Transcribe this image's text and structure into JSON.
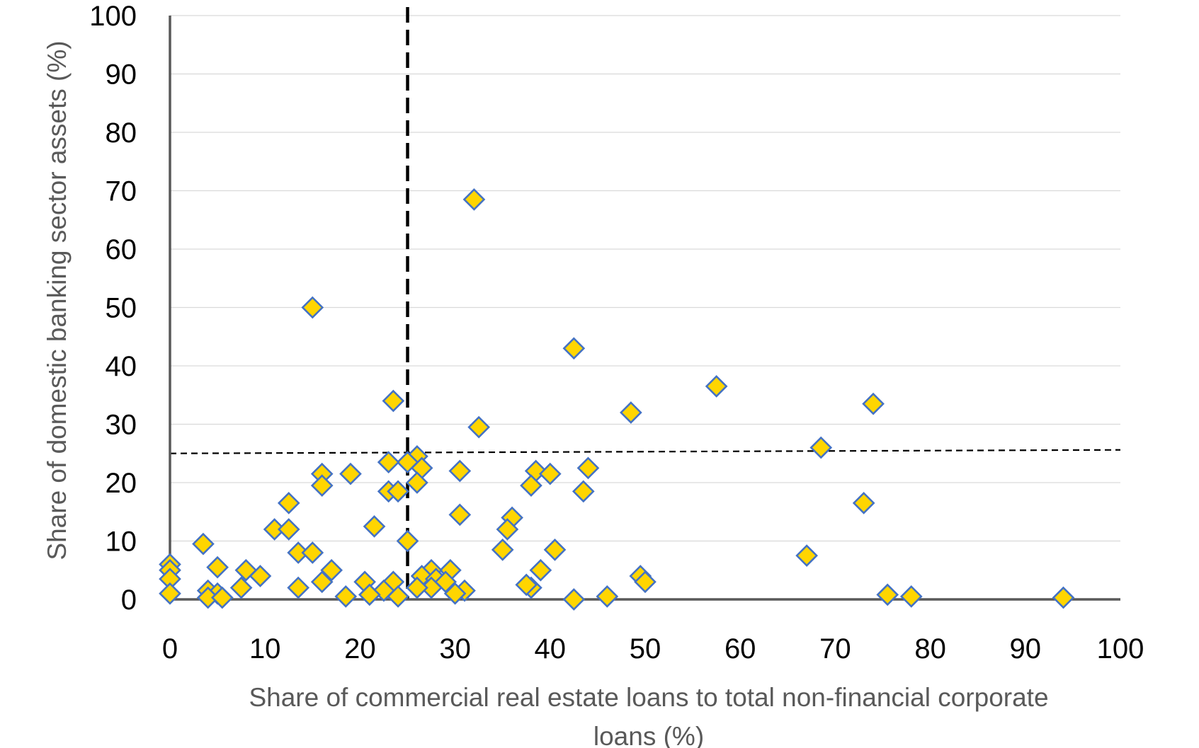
{
  "chart_data": {
    "type": "scatter",
    "xlabel": "Share of commercial real estate loans to total non-financial corporate loans (%)",
    "ylabel": "Share of domestic banking sector assets (%)",
    "xlim": [
      0,
      100
    ],
    "ylim": [
      0,
      100
    ],
    "x_ticks": [
      0,
      10,
      20,
      30,
      40,
      50,
      60,
      70,
      80,
      90,
      100
    ],
    "y_ticks": [
      0,
      10,
      20,
      30,
      40,
      50,
      60,
      70,
      80,
      90,
      100
    ],
    "grid": "horizontal",
    "legend": "none",
    "marker": "diamond",
    "colors": {
      "fill": "#ffd500",
      "edge": "#4472c4",
      "axis": "#595959",
      "grid": "#d9d9d9"
    },
    "reference_lines": [
      {
        "orientation": "vertical",
        "value": 25,
        "style": "bold-dashed"
      },
      {
        "orientation": "horizontal",
        "value": 25,
        "style": "dashed"
      }
    ],
    "points": [
      [
        32,
        68.5
      ],
      [
        15,
        50
      ],
      [
        42.5,
        43
      ],
      [
        57.5,
        36.5
      ],
      [
        74,
        33.5
      ],
      [
        23.5,
        34
      ],
      [
        48.5,
        32
      ],
      [
        32.5,
        29.5
      ],
      [
        68.5,
        26
      ],
      [
        26,
        24.5
      ],
      [
        25,
        23.5
      ],
      [
        23,
        23.5
      ],
      [
        26.5,
        22.5
      ],
      [
        30.5,
        22
      ],
      [
        38.5,
        22
      ],
      [
        40,
        21.5
      ],
      [
        44,
        22.5
      ],
      [
        16,
        21.5
      ],
      [
        19,
        21.5
      ],
      [
        16,
        19.5
      ],
      [
        26,
        20
      ],
      [
        23,
        18.5
      ],
      [
        24,
        18.5
      ],
      [
        38,
        19.5
      ],
      [
        43.5,
        18.5
      ],
      [
        73,
        16.5
      ],
      [
        12.5,
        16.5
      ],
      [
        30.5,
        14.5
      ],
      [
        36,
        14
      ],
      [
        21.5,
        12.5
      ],
      [
        35.5,
        12
      ],
      [
        11,
        12
      ],
      [
        12.5,
        12
      ],
      [
        25,
        10
      ],
      [
        3.5,
        9.5
      ],
      [
        40.5,
        8.5
      ],
      [
        35,
        8.5
      ],
      [
        67,
        7.5
      ],
      [
        13.5,
        8
      ],
      [
        15,
        8
      ],
      [
        0,
        6
      ],
      [
        0,
        5
      ],
      [
        5,
        5.5
      ],
      [
        8,
        5
      ],
      [
        17,
        5
      ],
      [
        9.5,
        4
      ],
      [
        29.5,
        5
      ],
      [
        27.5,
        5
      ],
      [
        26.5,
        4
      ],
      [
        39,
        5
      ],
      [
        49.5,
        4
      ],
      [
        50,
        3
      ],
      [
        0,
        3.5
      ],
      [
        13.5,
        2
      ],
      [
        16,
        3
      ],
      [
        20.5,
        3
      ],
      [
        23.5,
        3
      ],
      [
        28,
        3.5
      ],
      [
        29,
        3
      ],
      [
        4,
        1.5
      ],
      [
        5,
        1
      ],
      [
        7.5,
        2
      ],
      [
        22.5,
        1.5
      ],
      [
        27.5,
        2
      ],
      [
        38,
        2
      ],
      [
        31,
        1.5
      ],
      [
        30,
        1
      ],
      [
        37.5,
        2.5
      ],
      [
        0,
        1
      ],
      [
        4,
        0.3
      ],
      [
        5.5,
        0.3
      ],
      [
        18.5,
        0.5
      ],
      [
        21,
        0.8
      ],
      [
        24,
        0.5
      ],
      [
        26,
        2
      ],
      [
        42.5,
        0
      ],
      [
        46,
        0.5
      ],
      [
        75.5,
        0.8
      ],
      [
        78,
        0.5
      ],
      [
        94,
        0.3
      ]
    ]
  }
}
